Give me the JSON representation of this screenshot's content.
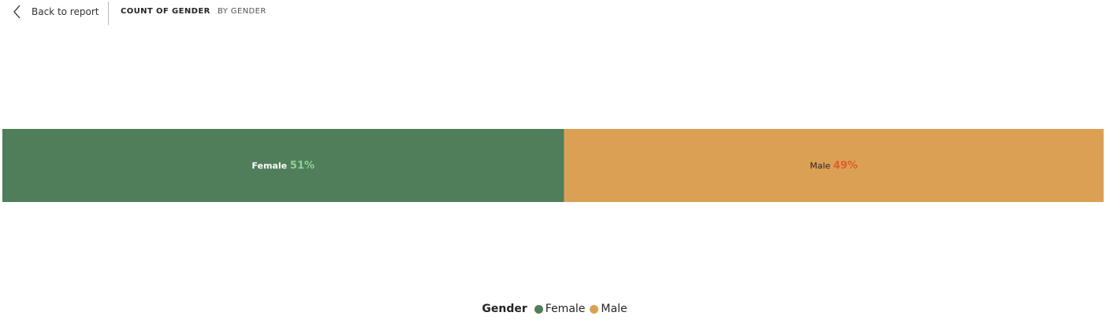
{
  "header": {
    "back_label": "Back to report",
    "tabs": [
      {
        "label": "COUNT OF GENDER",
        "active": true
      },
      {
        "label": "BY GENDER",
        "active": false
      }
    ]
  },
  "chart_data": {
    "type": "bar",
    "orientation": "horizontal-100%-stacked",
    "categories": [
      "Female",
      "Male"
    ],
    "values": [
      51,
      49
    ],
    "value_labels": [
      "51%",
      "49%"
    ],
    "colors": [
      "#507e5a",
      "#dca055"
    ],
    "percent_label_colors": [
      "#8fd39a",
      "#d9612b"
    ],
    "category_label_colors": [
      "#ffffff",
      "#252525"
    ],
    "legend": {
      "title": "Gender",
      "entries": [
        "Female",
        "Male"
      ],
      "placement": "bottom-center"
    }
  }
}
